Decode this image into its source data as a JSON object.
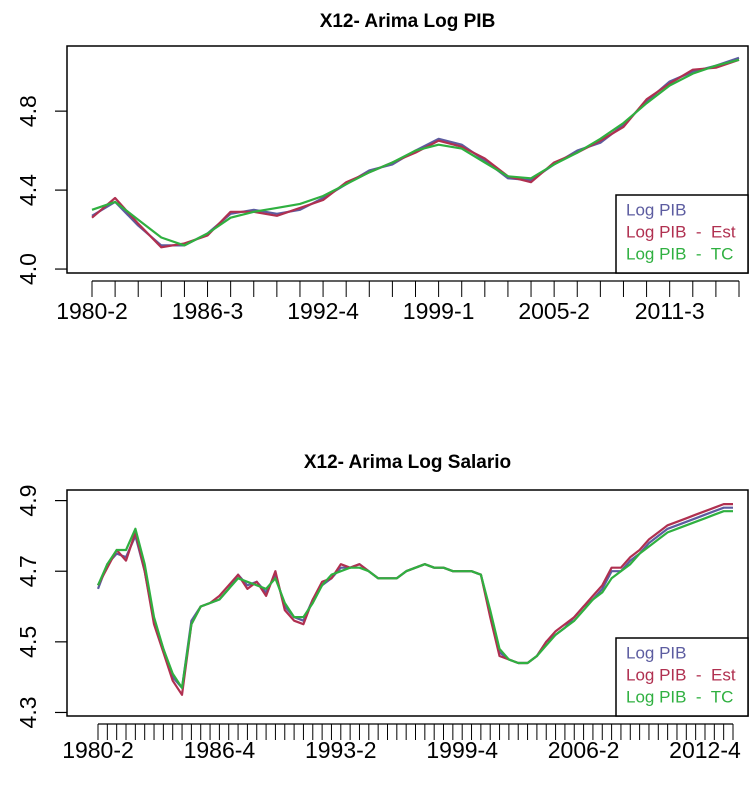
{
  "chart_data": [
    {
      "type": "line",
      "title": "X12- Arima Log PIB",
      "categories": [
        "1980-2",
        null,
        null,
        null,
        null,
        "1986-3",
        null,
        null,
        null,
        null,
        "1992-4",
        null,
        null,
        null,
        null,
        "1999-1",
        null,
        null,
        null,
        null,
        "2005-2",
        null,
        null,
        null,
        null,
        "2011-3",
        null,
        null,
        null
      ],
      "series": [
        {
          "name": "Log PIB",
          "color": "#5c5ca0",
          "values": [
            4.27,
            4.34,
            4.22,
            4.12,
            4.12,
            4.18,
            4.28,
            4.3,
            4.28,
            4.3,
            4.36,
            4.43,
            4.5,
            4.53,
            4.6,
            4.66,
            4.63,
            4.55,
            4.46,
            4.45,
            4.53,
            4.6,
            4.64,
            4.73,
            4.85,
            4.95,
            5.0,
            5.03,
            5.07
          ]
        },
        {
          "name": "Log PIB  -  Est",
          "color": "#b03050",
          "values": [
            4.26,
            4.36,
            4.23,
            4.11,
            4.13,
            4.17,
            4.29,
            4.29,
            4.27,
            4.31,
            4.35,
            4.44,
            4.49,
            4.54,
            4.59,
            4.65,
            4.62,
            4.56,
            4.47,
            4.44,
            4.54,
            4.59,
            4.65,
            4.72,
            4.86,
            4.94,
            5.01,
            5.02,
            5.06
          ]
        },
        {
          "name": "Log PIB  -  TC",
          "color": "#2fb040",
          "values": [
            4.3,
            4.34,
            4.25,
            4.16,
            4.12,
            4.18,
            4.26,
            4.29,
            4.31,
            4.33,
            4.37,
            4.43,
            4.49,
            4.54,
            4.6,
            4.63,
            4.61,
            4.54,
            4.47,
            4.46,
            4.53,
            4.59,
            4.66,
            4.74,
            4.84,
            4.93,
            4.99,
            5.03,
            5.06
          ]
        }
      ],
      "ylim": [
        3.98,
        5.13
      ],
      "yticks": [
        {
          "value": 4,
          "label": "4.0"
        },
        4.4,
        4.8
      ],
      "legend": "bottomright"
    },
    {
      "type": "line",
      "title": "X12-  Arima  Log  Salario",
      "categories": [
        "1980-2",
        null,
        null,
        null,
        null,
        null,
        null,
        null,
        null,
        null,
        null,
        null,
        null,
        "1986-4",
        null,
        null,
        null,
        null,
        null,
        null,
        null,
        null,
        null,
        null,
        null,
        null,
        "1993-2",
        null,
        null,
        null,
        null,
        null,
        null,
        null,
        null,
        null,
        null,
        null,
        null,
        "1999-4",
        null,
        null,
        null,
        null,
        null,
        null,
        null,
        null,
        null,
        null,
        null,
        null,
        "2006-2",
        null,
        null,
        null,
        null,
        null,
        null,
        null,
        null,
        null,
        null,
        null,
        null,
        "2012-4",
        null,
        null,
        null
      ],
      "series": [
        {
          "name": "Log PIB",
          "color": "#5c5ca0",
          "values": [
            4.65,
            4.72,
            4.75,
            4.74,
            4.8,
            4.7,
            4.56,
            4.48,
            4.4,
            4.37,
            4.56,
            4.6,
            4.61,
            4.62,
            4.65,
            4.69,
            4.66,
            4.67,
            4.64,
            4.69,
            4.6,
            4.57,
            4.56,
            4.62,
            4.66,
            4.68,
            4.71,
            4.71,
            4.72,
            4.7,
            4.68,
            4.68,
            4.68,
            4.7,
            4.71,
            4.72,
            4.71,
            4.71,
            4.7,
            4.7,
            4.7,
            4.69,
            4.58,
            4.47,
            4.45,
            4.44,
            4.44,
            4.46,
            4.5,
            4.52,
            4.54,
            4.57,
            4.6,
            4.62,
            4.65,
            4.7,
            4.7,
            4.73,
            4.75,
            4.78,
            4.8,
            4.82,
            4.83,
            4.84,
            4.85,
            4.86,
            4.87,
            4.88,
            4.88
          ]
        },
        {
          "name": "Log PIB  -  Est",
          "color": "#b03050",
          "values": [
            4.66,
            4.71,
            4.76,
            4.73,
            4.81,
            4.7,
            4.55,
            4.47,
            4.39,
            4.35,
            4.55,
            4.6,
            4.61,
            4.63,
            4.66,
            4.69,
            4.65,
            4.67,
            4.63,
            4.7,
            4.59,
            4.56,
            4.55,
            4.62,
            4.67,
            4.68,
            4.72,
            4.71,
            4.72,
            4.7,
            4.68,
            4.68,
            4.68,
            4.7,
            4.71,
            4.72,
            4.71,
            4.71,
            4.7,
            4.7,
            4.7,
            4.69,
            4.57,
            4.46,
            4.45,
            4.44,
            4.44,
            4.46,
            4.5,
            4.53,
            4.55,
            4.57,
            4.6,
            4.63,
            4.66,
            4.71,
            4.71,
            4.74,
            4.76,
            4.79,
            4.81,
            4.83,
            4.84,
            4.85,
            4.86,
            4.87,
            4.88,
            4.89,
            4.89
          ]
        },
        {
          "name": "Log PIB  -  TC",
          "color": "#2fb040",
          "values": [
            4.66,
            4.72,
            4.76,
            4.76,
            4.82,
            4.72,
            4.57,
            4.48,
            4.41,
            4.37,
            4.55,
            4.6,
            4.61,
            4.62,
            4.65,
            4.68,
            4.67,
            4.66,
            4.65,
            4.68,
            4.61,
            4.57,
            4.57,
            4.61,
            4.66,
            4.69,
            4.7,
            4.71,
            4.71,
            4.7,
            4.68,
            4.68,
            4.68,
            4.7,
            4.71,
            4.72,
            4.71,
            4.71,
            4.7,
            4.7,
            4.7,
            4.69,
            4.59,
            4.48,
            4.45,
            4.44,
            4.44,
            4.46,
            4.49,
            4.52,
            4.54,
            4.56,
            4.59,
            4.62,
            4.64,
            4.68,
            4.7,
            4.72,
            4.75,
            4.77,
            4.79,
            4.81,
            4.82,
            4.83,
            4.84,
            4.85,
            4.86,
            4.87,
            4.87
          ]
        }
      ],
      "ylim": [
        4.29,
        4.93
      ],
      "yticks": [
        4.3,
        4.5,
        4.7,
        4.9
      ],
      "legend": "bottomright"
    }
  ]
}
